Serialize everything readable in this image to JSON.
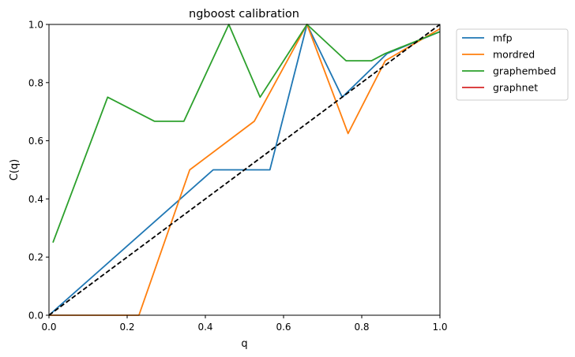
{
  "chart_data": {
    "type": "line",
    "title": "ngboost calibration",
    "xlabel": "q",
    "ylabel": "C(q)",
    "xlim": [
      0,
      1
    ],
    "ylim": [
      0,
      1
    ],
    "x_ticks": [
      "0.0",
      "0.2",
      "0.4",
      "0.6",
      "0.8",
      "1.0"
    ],
    "y_ticks": [
      "0.0",
      "0.2",
      "0.4",
      "0.6",
      "0.8",
      "1.0"
    ],
    "grid": false,
    "legend_position": "outside top-right",
    "reference_line": {
      "style": "dashed",
      "color": "#000000",
      "x": [
        0,
        1
      ],
      "y": [
        0,
        1
      ]
    },
    "series": [
      {
        "name": "mfp",
        "color": "#1f77b4",
        "x": [
          0.0,
          0.42,
          0.565,
          0.66,
          0.75,
          0.865,
          1.0
        ],
        "y": [
          0.0,
          0.5,
          0.5,
          1.0,
          0.75,
          0.9,
          0.975
        ]
      },
      {
        "name": "mordred",
        "color": "#ff7f0e",
        "x": [
          0.0,
          0.23,
          0.36,
          0.525,
          0.66,
          0.765,
          0.86,
          1.0
        ],
        "y": [
          0.0,
          0.0,
          0.5,
          0.667,
          1.0,
          0.625,
          0.875,
          0.985
        ]
      },
      {
        "name": "graphembed",
        "color": "#2ca02c",
        "x": [
          0.01,
          0.15,
          0.27,
          0.345,
          0.46,
          0.54,
          0.66,
          0.76,
          0.825,
          0.86,
          1.0
        ],
        "y": [
          0.25,
          0.75,
          0.667,
          0.667,
          1.0,
          0.75,
          1.0,
          0.875,
          0.875,
          0.9,
          0.975
        ]
      },
      {
        "name": "graphnet",
        "color": "#d62728",
        "x": [],
        "y": []
      }
    ]
  }
}
